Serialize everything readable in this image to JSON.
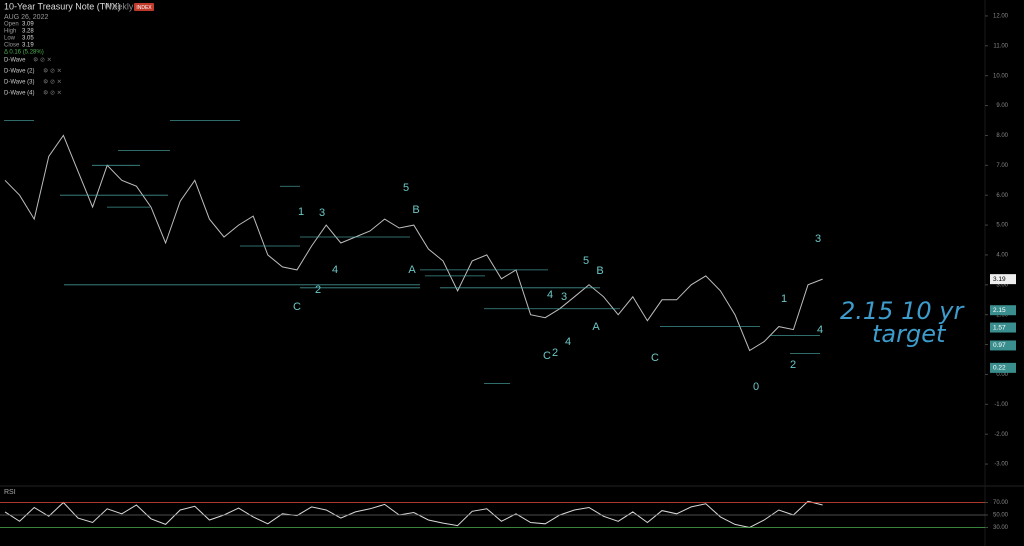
{
  "chart_data": [
    {
      "type": "line",
      "title": "10-Year Treasury Note (TNX)",
      "subtitle": "Weekly",
      "badge": "INDEX",
      "date": "AUG 26, 2022",
      "ohlc": [
        {
          "label": "Open",
          "value": "3.09"
        },
        {
          "label": "High",
          "value": "3.28"
        },
        {
          "label": "Low",
          "value": "3.05"
        },
        {
          "label": "Close",
          "value": "3.19"
        }
      ],
      "change": "Δ 0.16 (5.28%)",
      "indicators": [
        "D-Wave",
        "D-Wave (2)",
        "D-Wave (3)",
        "D-Wave (4)"
      ],
      "series": [
        {
          "name": "TNX",
          "color": "#bdbdbd",
          "values": [
            6.5,
            6.0,
            5.2,
            7.3,
            8.0,
            6.8,
            5.6,
            7.0,
            6.5,
            6.3,
            5.6,
            4.4,
            5.8,
            6.5,
            5.2,
            4.6,
            5.0,
            5.3,
            4.0,
            3.6,
            3.5,
            4.3,
            5.0,
            4.4,
            4.6,
            4.8,
            5.2,
            4.9,
            5.0,
            4.2,
            3.8,
            2.8,
            3.8,
            4.0,
            3.2,
            3.5,
            2.0,
            1.9,
            2.2,
            2.6,
            3.0,
            2.6,
            2.0,
            2.6,
            1.8,
            2.5,
            2.5,
            3.0,
            3.3,
            2.8,
            2.0,
            0.8,
            1.1,
            1.6,
            1.5,
            3.0,
            3.19
          ]
        }
      ],
      "levels": [
        8.5,
        8.5,
        7.5,
        7.0,
        6.3,
        6.0,
        5.6,
        4.3,
        4.6,
        3.5,
        3.0,
        2.9,
        3.3,
        2.2,
        1.6,
        1.3,
        -0.3,
        2.9,
        0.7
      ],
      "level_color": "#4fb3b3",
      "price_markers": [
        3.19,
        2.15,
        1.57,
        0.97,
        0.22
      ],
      "wave_labels": [
        "5",
        "B",
        "1",
        "3",
        "4",
        "C",
        "2",
        "A",
        "5",
        "B",
        "3",
        "4",
        "C",
        "2",
        "A",
        "C",
        "4",
        "1",
        "2",
        "0",
        "3",
        "4"
      ],
      "annotation": [
        "2.15 10 yr",
        "target"
      ],
      "ylim": [
        -3.5,
        12.5
      ],
      "yticks": [
        {
          "value": 12,
          "label": "12.00"
        },
        {
          "value": 11,
          "label": "11.00"
        },
        {
          "value": 10,
          "label": "10.00"
        },
        {
          "value": 9,
          "label": "9.00"
        },
        {
          "value": 8,
          "label": "8.00"
        },
        {
          "value": 7,
          "label": "7.00"
        },
        {
          "value": 6,
          "label": "6.00"
        },
        {
          "value": 5,
          "label": "5.00"
        },
        {
          "value": 4,
          "label": "4.00"
        },
        {
          "value": 3,
          "label": "3.00"
        },
        {
          "value": 2,
          "label": "2.00"
        },
        {
          "value": 1,
          "label": "1.00"
        },
        {
          "value": 0,
          "label": "0.00"
        },
        {
          "value": -1,
          "label": "-1.00"
        },
        {
          "value": -2,
          "label": "-2.00"
        },
        {
          "value": -3,
          "label": "-3.00"
        }
      ]
    },
    {
      "type": "line",
      "title": "RSI",
      "series": [
        {
          "name": "RSI",
          "color": "#d8d8d8",
          "values": [
            55,
            40,
            62,
            48,
            70,
            45,
            38,
            60,
            52,
            66,
            44,
            35,
            58,
            64,
            42,
            50,
            61,
            47,
            36,
            52,
            49,
            63,
            58,
            45,
            55,
            60,
            67,
            50,
            54,
            42,
            37,
            33,
            56,
            60,
            40,
            52,
            38,
            36,
            50,
            58,
            62,
            48,
            40,
            55,
            38,
            57,
            52,
            63,
            68,
            47,
            35,
            30,
            42,
            58,
            50,
            72,
            66
          ]
        }
      ],
      "ylim": [
        10,
        90
      ],
      "yticks": [
        {
          "value": 70,
          "label": "70.00"
        },
        {
          "value": 50,
          "label": "50.00"
        },
        {
          "value": 30,
          "label": "30.00"
        }
      ]
    }
  ]
}
